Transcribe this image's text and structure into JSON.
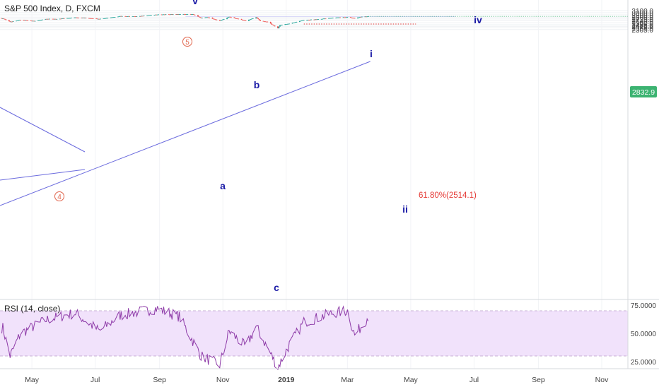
{
  "header": {
    "title": "S&P 500 Index, D, FXCM"
  },
  "price_tag": "2832.9",
  "rsi": {
    "title": "RSI (14, close)"
  },
  "fib_label": "61.80%(2514.1)",
  "waves": {
    "v": "v",
    "i": "i",
    "iv": "iv",
    "ii": "ii",
    "a": "a",
    "b": "b",
    "c": "c",
    "five": "5",
    "four": "4"
  },
  "colors": {
    "up": "#26a69a",
    "down": "#ef5350",
    "trendline": "#6b6bde",
    "wave_text": "#1a1aa6",
    "circle_label": "#e0634a",
    "fib": "#e53935",
    "zone": "#b4b4f0",
    "rsi_band": "#f1e2fb",
    "rsi_line": "#8e3ba8",
    "price_tag": "#3cb371"
  },
  "chart_data": [
    {
      "type": "candlestick",
      "title": "S&P 500 Index, D, FXCM",
      "y_ticks": [
        3100.0,
        3000.0,
        2900.0,
        2800.0,
        2720.0,
        2640.0,
        2560.0,
        2485.0,
        2425.0,
        2365.0,
        2305.0
      ],
      "y_tick_labels": [
        "3100.0",
        "3000.0",
        "2900.0",
        "2800.0",
        "2720.0",
        "2640.0",
        "2560.0",
        "2485.0",
        "2425.0",
        "2365.0",
        "2305.0"
      ],
      "x_ticks": [
        "May",
        "Jul",
        "Sep",
        "Nov",
        "2019",
        "Mar",
        "May",
        "Jul",
        "Sep",
        "Nov"
      ],
      "last_price": 2832.9,
      "path_dates": [
        "2018-04-03",
        "2018-04-10",
        "2018-04-20",
        "2018-05-03",
        "2018-05-15",
        "2018-05-25",
        "2018-06-12",
        "2018-06-20",
        "2018-07-05",
        "2018-07-25",
        "2018-08-10",
        "2018-08-29",
        "2018-09-20",
        "2018-10-03",
        "2018-10-11",
        "2018-10-17",
        "2018-10-29",
        "2018-11-07",
        "2018-11-23",
        "2018-12-03",
        "2018-12-07",
        "2018-12-14",
        "2018-12-24",
        "2018-12-26",
        "2019-01-04",
        "2019-01-18",
        "2019-02-01",
        "2019-02-15",
        "2019-03-01",
        "2019-03-08",
        "2019-03-15",
        "2019-03-21"
      ],
      "path_closes": [
        2740,
        2600,
        2680,
        2630,
        2720,
        2720,
        2780,
        2770,
        2720,
        2840,
        2830,
        2910,
        2930,
        2925,
        2760,
        2800,
        2640,
        2810,
        2640,
        2790,
        2640,
        2600,
        2351,
        2468,
        2530,
        2670,
        2710,
        2775,
        2800,
        2750,
        2820,
        2832.9
      ],
      "zone": [
        2808,
        2827
      ],
      "fib_level": 2514.1,
      "wave_labels": [
        "v",
        "5",
        "4",
        "a",
        "b",
        "c",
        "i",
        "ii",
        "iv"
      ]
    },
    {
      "type": "line",
      "title": "RSI (14, close)",
      "y_ticks": [
        75.0,
        50.0,
        25.0
      ],
      "y_tick_labels": [
        "75.0000",
        "50.0000",
        "25.0000"
      ],
      "band": [
        30,
        70
      ],
      "points_dates": [
        "2018-04-03",
        "2018-04-10",
        "2018-04-20",
        "2018-05-15",
        "2018-06-12",
        "2018-07-05",
        "2018-07-25",
        "2018-08-29",
        "2018-09-20",
        "2018-10-11",
        "2018-10-29",
        "2018-11-07",
        "2018-11-23",
        "2018-12-03",
        "2018-12-24",
        "2019-01-04",
        "2019-01-18",
        "2019-02-15",
        "2019-03-01",
        "2019-03-08",
        "2019-03-21"
      ],
      "values": [
        55,
        30,
        50,
        62,
        68,
        52,
        66,
        72,
        65,
        30,
        22,
        52,
        38,
        56,
        20,
        40,
        60,
        68,
        70,
        48,
        65
      ]
    }
  ]
}
